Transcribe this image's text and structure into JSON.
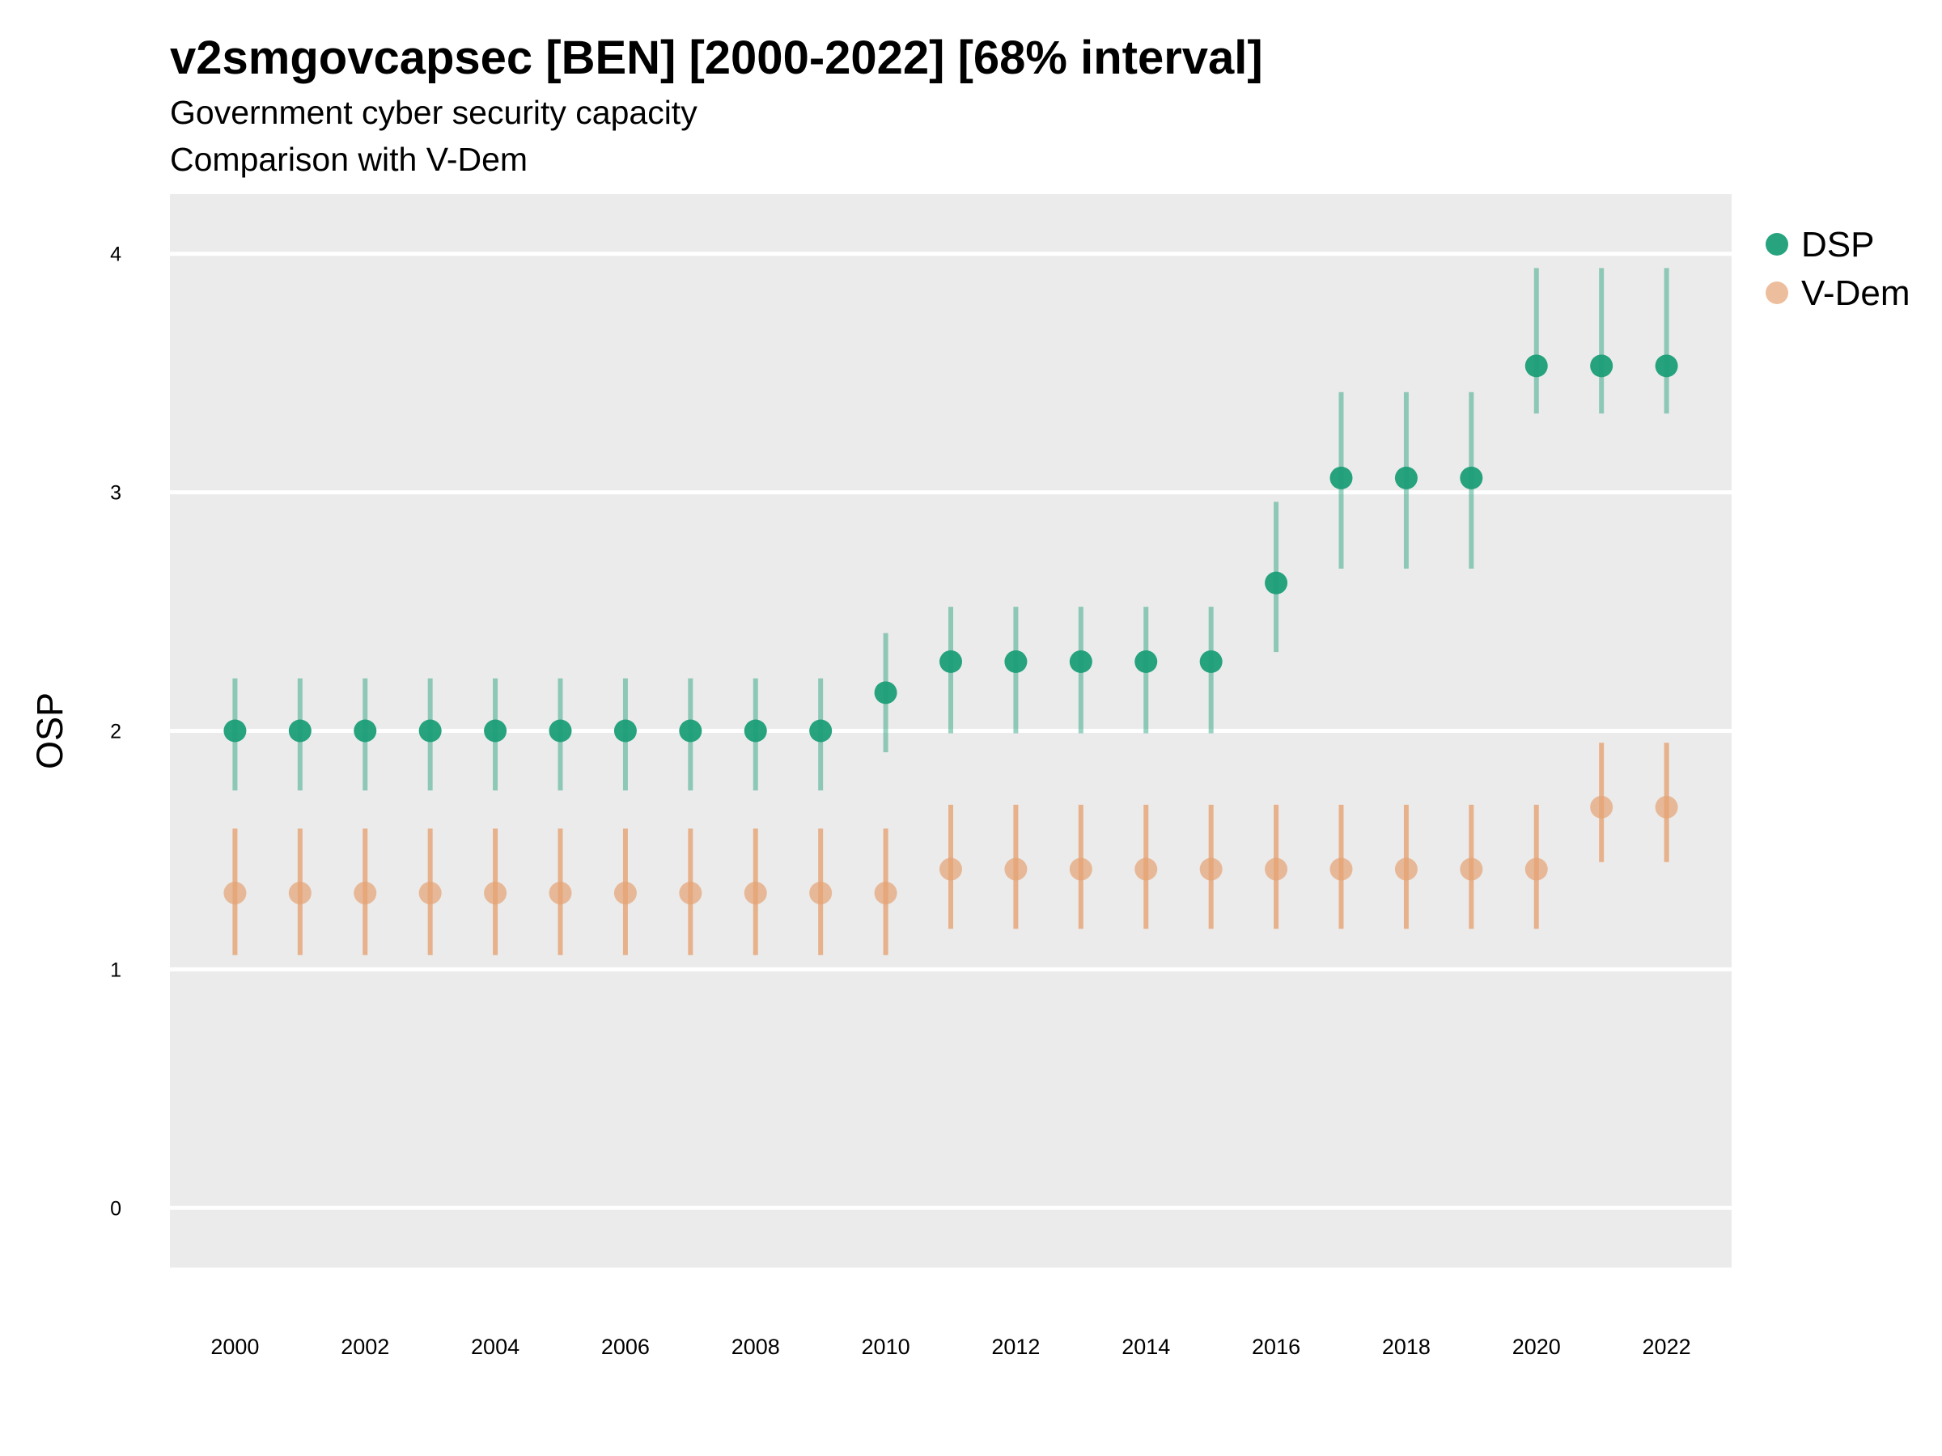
{
  "chart_data": {
    "type": "scatter",
    "title": "v2smgovcapsec [BEN] [2000-2022] [68% interval]",
    "subtitle": "Government cyber security capacity",
    "caption": "Comparison with V-Dem",
    "xlabel": "",
    "ylabel": "OSP",
    "x": [
      2000,
      2001,
      2002,
      2003,
      2004,
      2005,
      2006,
      2007,
      2008,
      2009,
      2010,
      2011,
      2012,
      2013,
      2014,
      2015,
      2016,
      2017,
      2018,
      2019,
      2020,
      2021,
      2022
    ],
    "xticks": [
      2000,
      2002,
      2004,
      2006,
      2008,
      2010,
      2012,
      2014,
      2016,
      2018,
      2020,
      2022
    ],
    "yticks": [
      0,
      1,
      2,
      3,
      4
    ],
    "xlim": [
      1999.0,
      2023.0
    ],
    "ylim": [
      -0.25,
      4.25
    ],
    "grid": true,
    "legend_position": "right",
    "series": [
      {
        "name": "DSP",
        "color": "#1b9e77",
        "values": [
          2.0,
          2.0,
          2.0,
          2.0,
          2.0,
          2.0,
          2.0,
          2.0,
          2.0,
          2.0,
          2.16,
          2.29,
          2.29,
          2.29,
          2.29,
          2.29,
          2.62,
          3.06,
          3.06,
          3.06,
          3.53,
          3.53,
          3.53
        ],
        "lower": [
          1.75,
          1.75,
          1.75,
          1.75,
          1.75,
          1.75,
          1.75,
          1.75,
          1.75,
          1.75,
          1.91,
          1.99,
          1.99,
          1.99,
          1.99,
          1.99,
          2.33,
          2.68,
          2.68,
          2.68,
          3.33,
          3.33,
          3.33
        ],
        "upper": [
          2.22,
          2.22,
          2.22,
          2.22,
          2.22,
          2.22,
          2.22,
          2.22,
          2.22,
          2.22,
          2.41,
          2.52,
          2.52,
          2.52,
          2.52,
          2.52,
          2.96,
          3.42,
          3.42,
          3.42,
          3.94,
          3.94,
          3.94
        ]
      },
      {
        "name": "V-Dem",
        "color": "#e6a273",
        "values": [
          1.32,
          1.32,
          1.32,
          1.32,
          1.32,
          1.32,
          1.32,
          1.32,
          1.32,
          1.32,
          1.32,
          1.42,
          1.42,
          1.42,
          1.42,
          1.42,
          1.42,
          1.42,
          1.42,
          1.42,
          1.42,
          1.68,
          1.68
        ],
        "lower": [
          1.06,
          1.06,
          1.06,
          1.06,
          1.06,
          1.06,
          1.06,
          1.06,
          1.06,
          1.06,
          1.06,
          1.17,
          1.17,
          1.17,
          1.17,
          1.17,
          1.17,
          1.17,
          1.17,
          1.17,
          1.17,
          1.45,
          1.45
        ],
        "upper": [
          1.59,
          1.59,
          1.59,
          1.59,
          1.59,
          1.59,
          1.59,
          1.59,
          1.59,
          1.59,
          1.59,
          1.69,
          1.69,
          1.69,
          1.69,
          1.69,
          1.69,
          1.69,
          1.69,
          1.69,
          1.69,
          1.95,
          1.95
        ]
      }
    ]
  }
}
